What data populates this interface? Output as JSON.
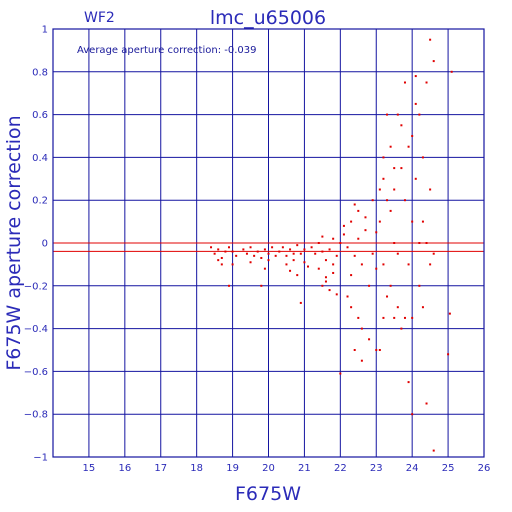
{
  "chart_data": {
    "type": "scatter",
    "title": "lmc_u65006",
    "chip_label": "WF2",
    "annotation": "Average aperture correction: -0.039",
    "xlabel": "F675W",
    "ylabel": "F675W aperture correction",
    "xlim": [
      14,
      26
    ],
    "ylim": [
      -1,
      1
    ],
    "xticks": [
      15,
      16,
      17,
      18,
      19,
      20,
      21,
      22,
      23,
      24,
      25,
      26
    ],
    "yticks": [
      -1,
      -0.8,
      -0.6,
      -0.4,
      -0.2,
      0,
      0.2,
      0.4,
      0.6,
      0.8,
      1
    ],
    "xtick_labels": [
      "15",
      "16",
      "17",
      "18",
      "19",
      "20",
      "21",
      "22",
      "23",
      "24",
      "25",
      "26"
    ],
    "ytick_labels": [
      "−1",
      "−0.8",
      "−0.6",
      "−0.4",
      "−0.2",
      "0",
      "0.2",
      "0.4",
      "0.6",
      "0.8",
      "1"
    ],
    "average_line": -0.039,
    "zero_line": 0,
    "grid": true,
    "colors": {
      "axes": "#1414a0",
      "text": "#2b2bb8",
      "points": "#e00000",
      "ref_lines": "#e00000"
    },
    "points": [
      [
        18.4,
        -0.02
      ],
      [
        18.5,
        -0.05
      ],
      [
        18.6,
        -0.03
      ],
      [
        18.7,
        -0.07
      ],
      [
        18.8,
        -0.04
      ],
      [
        18.9,
        -0.02
      ],
      [
        18.7,
        -0.1
      ],
      [
        18.6,
        -0.08
      ],
      [
        19.0,
        -0.04
      ],
      [
        19.1,
        -0.06
      ],
      [
        19.0,
        -0.1
      ],
      [
        18.9,
        -0.2
      ],
      [
        19.3,
        -0.03
      ],
      [
        19.4,
        -0.05
      ],
      [
        19.5,
        -0.02
      ],
      [
        19.6,
        -0.06
      ],
      [
        19.7,
        -0.04
      ],
      [
        19.8,
        -0.07
      ],
      [
        19.9,
        -0.03
      ],
      [
        20.0,
        -0.05
      ],
      [
        20.1,
        -0.02
      ],
      [
        20.2,
        -0.06
      ],
      [
        19.5,
        -0.09
      ],
      [
        19.9,
        -0.12
      ],
      [
        20.0,
        -0.08
      ],
      [
        19.8,
        -0.2
      ],
      [
        20.3,
        -0.04
      ],
      [
        20.4,
        -0.02
      ],
      [
        20.5,
        -0.06
      ],
      [
        20.6,
        -0.03
      ],
      [
        20.7,
        -0.05
      ],
      [
        20.8,
        -0.01
      ],
      [
        20.9,
        -0.05
      ],
      [
        21.0,
        -0.03
      ],
      [
        20.5,
        -0.1
      ],
      [
        20.7,
        -0.08
      ],
      [
        20.8,
        -0.15
      ],
      [
        21.0,
        -0.09
      ],
      [
        21.1,
        -0.11
      ],
      [
        20.9,
        -0.28
      ],
      [
        20.6,
        -0.13
      ],
      [
        21.2,
        -0.02
      ],
      [
        21.3,
        -0.05
      ],
      [
        21.4,
        0.0
      ],
      [
        21.5,
        -0.04
      ],
      [
        21.6,
        -0.08
      ],
      [
        21.7,
        -0.03
      ],
      [
        21.8,
        -0.1
      ],
      [
        21.9,
        -0.06
      ],
      [
        21.4,
        -0.12
      ],
      [
        21.6,
        -0.16
      ],
      [
        21.8,
        -0.14
      ],
      [
        21.5,
        -0.2
      ],
      [
        21.7,
        -0.22
      ],
      [
        21.9,
        -0.24
      ],
      [
        21.5,
        0.03
      ],
      [
        21.8,
        0.02
      ],
      [
        21.6,
        -0.18
      ],
      [
        22.0,
        0.0
      ],
      [
        22.1,
        0.04
      ],
      [
        22.2,
        -0.02
      ],
      [
        22.3,
        0.1
      ],
      [
        22.4,
        -0.06
      ],
      [
        22.5,
        0.15
      ],
      [
        22.6,
        -0.1
      ],
      [
        22.7,
        0.06
      ],
      [
        22.8,
        -0.2
      ],
      [
        22.9,
        0.2
      ],
      [
        22.2,
        -0.25
      ],
      [
        22.3,
        -0.3
      ],
      [
        22.5,
        -0.35
      ],
      [
        22.6,
        -0.4
      ],
      [
        22.8,
        -0.45
      ],
      [
        22.4,
        0.18
      ],
      [
        22.7,
        0.12
      ],
      [
        22.3,
        -0.15
      ],
      [
        22.0,
        -0.61
      ],
      [
        22.4,
        -0.5
      ],
      [
        22.6,
        -0.55
      ],
      [
        22.9,
        -0.05
      ],
      [
        22.1,
        0.08
      ],
      [
        22.5,
        0.02
      ],
      [
        23.0,
        0.05
      ],
      [
        23.1,
        0.1
      ],
      [
        23.2,
        -0.1
      ],
      [
        23.3,
        0.2
      ],
      [
        23.4,
        -0.2
      ],
      [
        23.5,
        0.25
      ],
      [
        23.6,
        -0.3
      ],
      [
        23.7,
        0.35
      ],
      [
        23.8,
        -0.35
      ],
      [
        23.9,
        0.45
      ],
      [
        23.0,
        -0.12
      ],
      [
        23.2,
        0.3
      ],
      [
        23.3,
        -0.25
      ],
      [
        23.4,
        0.45
      ],
      [
        23.5,
        -0.35
      ],
      [
        23.6,
        0.6
      ],
      [
        23.7,
        -0.4
      ],
      [
        23.8,
        0.2
      ],
      [
        23.9,
        -0.1
      ],
      [
        23.1,
        0.25
      ],
      [
        23.2,
        0.4
      ],
      [
        23.4,
        0.15
      ],
      [
        23.5,
        0.0
      ],
      [
        23.6,
        -0.05
      ],
      [
        23.1,
        -0.5
      ],
      [
        23.0,
        -0.5
      ],
      [
        23.3,
        0.6
      ],
      [
        23.7,
        0.55
      ],
      [
        23.9,
        -0.65
      ],
      [
        23.8,
        0.75
      ],
      [
        23.5,
        0.35
      ],
      [
        23.2,
        -0.35
      ],
      [
        24.0,
        0.1
      ],
      [
        24.1,
        0.3
      ],
      [
        24.2,
        -0.2
      ],
      [
        24.3,
        0.4
      ],
      [
        24.4,
        0.0
      ],
      [
        24.5,
        0.25
      ],
      [
        24.6,
        -0.05
      ],
      [
        24.0,
        0.5
      ],
      [
        24.2,
        0.6
      ],
      [
        24.4,
        0.75
      ],
      [
        24.6,
        0.85
      ],
      [
        24.0,
        -0.8
      ],
      [
        24.4,
        -0.75
      ],
      [
        24.0,
        -0.35
      ],
      [
        24.3,
        0.1
      ],
      [
        24.1,
        0.78
      ],
      [
        24.5,
        0.95
      ],
      [
        24.6,
        -0.97
      ],
      [
        24.2,
        0.0
      ],
      [
        24.5,
        -0.1
      ],
      [
        24.3,
        -0.3
      ],
      [
        24.1,
        0.65
      ],
      [
        25.0,
        -0.52
      ],
      [
        25.1,
        0.8
      ],
      [
        25.05,
        -0.33
      ]
    ]
  }
}
